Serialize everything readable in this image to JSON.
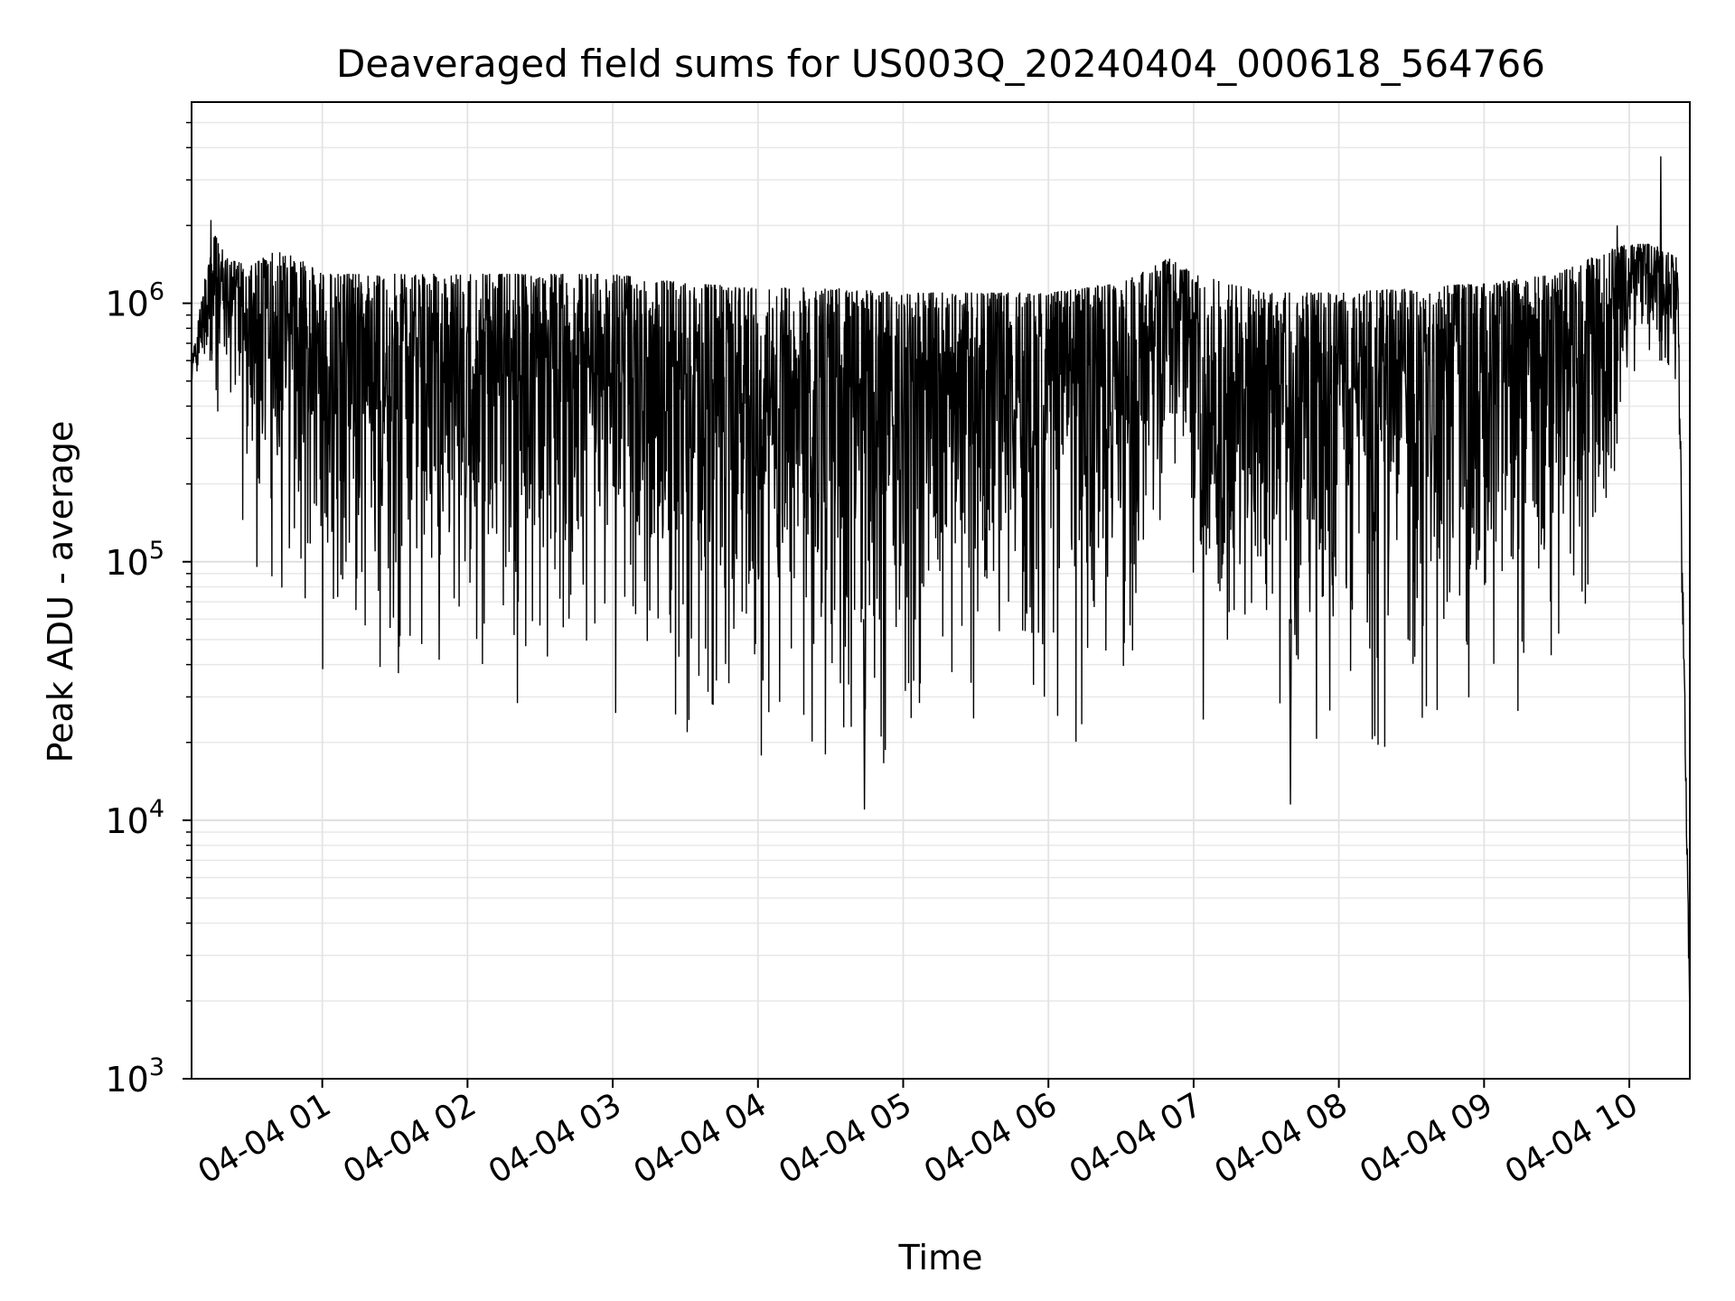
{
  "chart_data": {
    "type": "line",
    "title": "Deaveraged field sums for US003Q_20240404_000618_564766",
    "xlabel": "Time",
    "ylabel": "Peak ADU - average",
    "yscale": "log",
    "ylim": [
      1000,
      6000000
    ],
    "xlim": [
      "2024-04-04 00:06",
      "2024-04-04 10:25"
    ],
    "grid": true,
    "line_color": "#000000",
    "x_ticks": [
      {
        "label": "04-04 01",
        "value": "2024-04-04 01:00"
      },
      {
        "label": "04-04 02",
        "value": "2024-04-04 02:00"
      },
      {
        "label": "04-04 03",
        "value": "2024-04-04 03:00"
      },
      {
        "label": "04-04 04",
        "value": "2024-04-04 04:00"
      },
      {
        "label": "04-04 05",
        "value": "2024-04-04 05:00"
      },
      {
        "label": "04-04 06",
        "value": "2024-04-04 06:00"
      },
      {
        "label": "04-04 07",
        "value": "2024-04-04 07:00"
      },
      {
        "label": "04-04 08",
        "value": "2024-04-04 08:00"
      },
      {
        "label": "04-04 09",
        "value": "2024-04-04 09:00"
      },
      {
        "label": "04-04 10",
        "value": "2024-04-04 10:00"
      }
    ],
    "y_ticks": [
      {
        "base": "10",
        "exp": "3",
        "value": 1000
      },
      {
        "base": "10",
        "exp": "4",
        "value": 10000
      },
      {
        "base": "10",
        "exp": "5",
        "value": 100000
      },
      {
        "base": "10",
        "exp": "6",
        "value": 1000000
      }
    ],
    "envelope": {
      "time": [
        "2024-04-04 00:06",
        "2024-04-04 00:15",
        "2024-04-04 00:20",
        "2024-04-04 00:30",
        "2024-04-04 00:40",
        "2024-04-04 00:50",
        "2024-04-04 01:00",
        "2024-04-04 01:30",
        "2024-04-04 02:00",
        "2024-04-04 02:30",
        "2024-04-04 03:00",
        "2024-04-04 03:30",
        "2024-04-04 04:00",
        "2024-04-04 04:30",
        "2024-04-04 05:00",
        "2024-04-04 05:30",
        "2024-04-04 06:00",
        "2024-04-04 06:30",
        "2024-04-04 06:50",
        "2024-04-04 07:00",
        "2024-04-04 07:30",
        "2024-04-04 08:00",
        "2024-04-04 08:30",
        "2024-04-04 09:00",
        "2024-04-04 09:30",
        "2024-04-04 09:50",
        "2024-04-04 10:00",
        "2024-04-04 10:10",
        "2024-04-04 10:20",
        "2024-04-04 10:25"
      ],
      "upper": [
        600000,
        2000000,
        1500000,
        1400000,
        1600000,
        1500000,
        1300000,
        1300000,
        1300000,
        1300000,
        1300000,
        1200000,
        1150000,
        1150000,
        1100000,
        1100000,
        1100000,
        1200000,
        1500000,
        1300000,
        1100000,
        1100000,
        1150000,
        1200000,
        1300000,
        1600000,
        1700000,
        1700000,
        1500000,
        2000
      ],
      "lower": [
        400000,
        400000,
        250000,
        90000,
        45000,
        35000,
        30000,
        28000,
        27000,
        25000,
        22000,
        17000,
        15000,
        14000,
        14000,
        14000,
        15000,
        17000,
        200000,
        20000,
        17000,
        15000,
        15000,
        18000,
        22000,
        50000,
        500000,
        500000,
        400000,
        1500
      ]
    },
    "peaks": [
      {
        "time": "2024-04-04 00:14",
        "value": 2100000
      },
      {
        "time": "2024-04-04 04:44",
        "value": 11000
      },
      {
        "time": "2024-04-04 07:40",
        "value": 11500
      },
      {
        "time": "2024-04-04 09:55",
        "value": 2000000
      },
      {
        "time": "2024-04-04 10:13",
        "value": 3700000
      }
    ]
  }
}
